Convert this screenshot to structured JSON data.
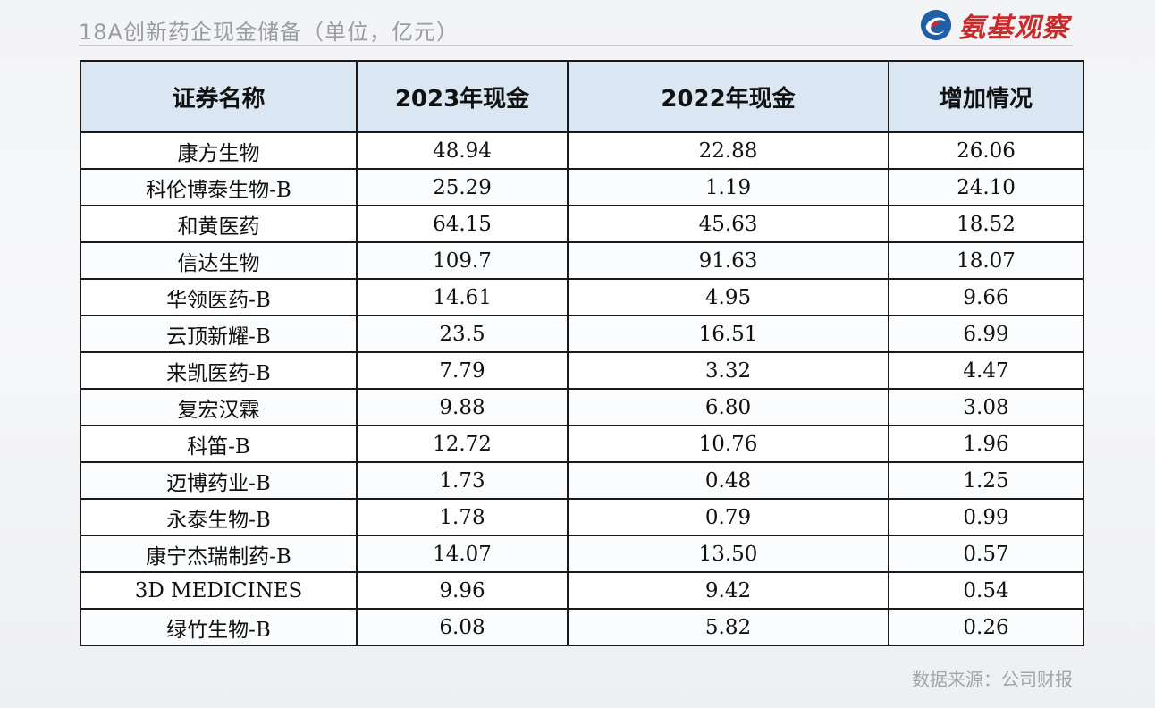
{
  "header": {
    "title": "18A创新药企现金储备（单位，亿元）",
    "logo_text": "氨基观察",
    "logo_icon": "swirl-logo-icon"
  },
  "chart_data": {
    "type": "table",
    "columns": [
      "证券名称",
      "2023年现金",
      "2022年现金",
      "增加情况"
    ],
    "rows": [
      [
        "康方生物",
        "48.94",
        "22.88",
        "26.06"
      ],
      [
        "科伦博泰生物-B",
        "25.29",
        "1.19",
        "24.10"
      ],
      [
        "和黄医药",
        "64.15",
        "45.63",
        "18.52"
      ],
      [
        "信达生物",
        "109.7",
        "91.63",
        "18.07"
      ],
      [
        "华领医药-B",
        "14.61",
        "4.95",
        "9.66"
      ],
      [
        "云顶新耀-B",
        "23.5",
        "16.51",
        "6.99"
      ],
      [
        "来凯医药-B",
        "7.79",
        "3.32",
        "4.47"
      ],
      [
        "复宏汉霖",
        "9.88",
        "6.80",
        "3.08"
      ],
      [
        "科笛-B",
        "12.72",
        "10.76",
        "1.96"
      ],
      [
        "迈博药业-B",
        "1.73",
        "0.48",
        "1.25"
      ],
      [
        "永泰生物-B",
        "1.78",
        "0.79",
        "0.99"
      ],
      [
        "康宁杰瑞制药-B",
        "14.07",
        "13.50",
        "0.57"
      ],
      [
        "3D MEDICINES",
        "9.96",
        "9.42",
        "0.54"
      ],
      [
        "绿竹生物-B",
        "6.08",
        "5.82",
        "0.26"
      ]
    ]
  },
  "footer": {
    "source": "数据来源：公司财报"
  },
  "colors": {
    "header_fill": "#dbe6f3",
    "logo_red": "#c92a2a",
    "logo_blue": "#1f5fa8",
    "grid_line": "#1a1a1a"
  }
}
